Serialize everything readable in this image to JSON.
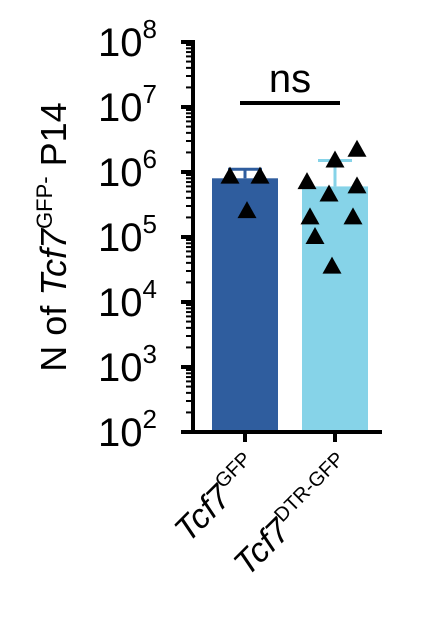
{
  "chart_data": {
    "type": "bar",
    "yscale": "log",
    "ylim": [
      100,
      100000000
    ],
    "ylabel": {
      "prefix": "N of ",
      "gene": "Tcf7",
      "superscript": "GFP-",
      "suffix": " P14"
    },
    "yticks": [
      {
        "base": "10",
        "exp": "2",
        "value": 100
      },
      {
        "base": "10",
        "exp": "3",
        "value": 1000
      },
      {
        "base": "10",
        "exp": "4",
        "value": 10000
      },
      {
        "base": "10",
        "exp": "5",
        "value": 100000
      },
      {
        "base": "10",
        "exp": "6",
        "value": 1000000
      },
      {
        "base": "10",
        "exp": "7",
        "value": 10000000
      },
      {
        "base": "10",
        "exp": "8",
        "value": 100000000
      }
    ],
    "categories": [
      {
        "gene": "Tcf7",
        "superscript": "GFP"
      },
      {
        "gene": "Tcf7",
        "superscript": "DTR-GFP"
      }
    ],
    "series": [
      {
        "values": [
          800000,
          600000
        ],
        "error_upper": [
          1100000,
          1500000
        ],
        "colors": [
          "#2f5d9e",
          "#86d3e8"
        ],
        "points": [
          [
            850000,
            850000,
            250000
          ],
          [
            2200000,
            1500000,
            700000,
            600000,
            450000,
            200000,
            200000,
            100000,
            35000
          ]
        ]
      }
    ],
    "significance": {
      "label": "ns",
      "from": 0,
      "to": 1,
      "value": 10000000
    },
    "grid": false,
    "legend": "none"
  }
}
